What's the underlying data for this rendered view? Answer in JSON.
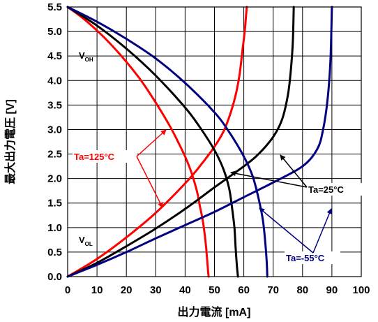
{
  "chart_data": {
    "type": "line",
    "title": "",
    "xlabel": "出力電流 [mA]",
    "ylabel": "最大出力電圧 [V]",
    "xlim": [
      0,
      100
    ],
    "ylim": [
      0,
      5.5
    ],
    "xticks": [
      "0",
      "10",
      "20",
      "30",
      "40",
      "50",
      "60",
      "70",
      "80",
      "90",
      "100"
    ],
    "yticks": [
      "0.0",
      "0.5",
      "1.0",
      "1.5",
      "2.0",
      "2.5",
      "3.0",
      "3.5",
      "4.0",
      "4.5",
      "5.0",
      "5.5"
    ],
    "grid": true,
    "colors": {
      "ta125": "#ff0000",
      "ta25": "#000000",
      "ta_minus55": "#000080"
    },
    "labels": {
      "voh_main": "V",
      "voh_sub": "OH",
      "vol_main": "V",
      "vol_sub": "OL",
      "ta125": "Ta=125°C",
      "ta25": "Ta=25°C",
      "ta_minus55": "Ta=-55°C"
    },
    "series": [
      {
        "group": "Ta=125°C",
        "kind": "VOH",
        "color": "#ff0000",
        "points": [
          [
            0,
            5.5
          ],
          [
            5,
            5.28
          ],
          [
            10,
            5.02
          ],
          [
            15,
            4.72
          ],
          [
            20,
            4.38
          ],
          [
            25,
            4.0
          ],
          [
            30,
            3.55
          ],
          [
            35,
            3.05
          ],
          [
            38,
            2.7
          ],
          [
            40,
            2.45
          ],
          [
            42,
            2.15
          ],
          [
            44,
            1.75
          ],
          [
            45,
            1.45
          ],
          [
            46,
            1.15
          ],
          [
            46.8,
            0.8
          ],
          [
            47.3,
            0.5
          ],
          [
            47.7,
            0.2
          ],
          [
            48,
            0
          ]
        ]
      },
      {
        "group": "Ta=125°C",
        "kind": "VOL",
        "color": "#ff0000",
        "points": [
          [
            0,
            0
          ],
          [
            10,
            0.36
          ],
          [
            20,
            0.8
          ],
          [
            30,
            1.3
          ],
          [
            40,
            1.9
          ],
          [
            45,
            2.25
          ],
          [
            50,
            2.65
          ],
          [
            53,
            2.95
          ],
          [
            55,
            3.25
          ],
          [
            57,
            3.65
          ],
          [
            58.5,
            4.1
          ],
          [
            59.5,
            4.6
          ],
          [
            60.3,
            5.0
          ],
          [
            61,
            5.5
          ]
        ]
      },
      {
        "group": "Ta=25°C",
        "kind": "VOH",
        "color": "#000000",
        "points": [
          [
            0,
            5.5
          ],
          [
            10,
            5.12
          ],
          [
            20,
            4.65
          ],
          [
            30,
            4.1
          ],
          [
            40,
            3.45
          ],
          [
            45,
            3.05
          ],
          [
            50,
            2.58
          ],
          [
            53,
            2.2
          ],
          [
            55,
            1.8
          ],
          [
            56,
            1.4
          ],
          [
            56.8,
            1.0
          ],
          [
            57.2,
            0.6
          ],
          [
            57.6,
            0.25
          ],
          [
            58,
            0
          ]
        ]
      },
      {
        "group": "Ta=25°C",
        "kind": "VOL",
        "color": "#000000",
        "points": [
          [
            0,
            0
          ],
          [
            10,
            0.28
          ],
          [
            20,
            0.62
          ],
          [
            30,
            0.98
          ],
          [
            40,
            1.38
          ],
          [
            50,
            1.82
          ],
          [
            60,
            2.25
          ],
          [
            65,
            2.5
          ],
          [
            70,
            2.85
          ],
          [
            73,
            3.2
          ],
          [
            75,
            3.7
          ],
          [
            76,
            4.2
          ],
          [
            76.7,
            4.8
          ],
          [
            77,
            5.5
          ]
        ]
      },
      {
        "group": "Ta=-55°C",
        "kind": "VOH",
        "color": "#000080",
        "points": [
          [
            0,
            5.5
          ],
          [
            10,
            5.2
          ],
          [
            20,
            4.85
          ],
          [
            30,
            4.45
          ],
          [
            40,
            3.95
          ],
          [
            50,
            3.35
          ],
          [
            55,
            2.95
          ],
          [
            60,
            2.45
          ],
          [
            63,
            2.05
          ],
          [
            65,
            1.6
          ],
          [
            66.5,
            1.15
          ],
          [
            67.3,
            0.7
          ],
          [
            67.8,
            0.3
          ],
          [
            68,
            0
          ]
        ]
      },
      {
        "group": "Ta=-55°C",
        "kind": "VOL",
        "color": "#000080",
        "points": [
          [
            0,
            0
          ],
          [
            10,
            0.24
          ],
          [
            20,
            0.5
          ],
          [
            30,
            0.78
          ],
          [
            40,
            1.05
          ],
          [
            50,
            1.32
          ],
          [
            60,
            1.62
          ],
          [
            70,
            1.92
          ],
          [
            80,
            2.25
          ],
          [
            85,
            2.6
          ],
          [
            87,
            3.0
          ],
          [
            88.5,
            3.6
          ],
          [
            89.5,
            4.4
          ],
          [
            90,
            5.5
          ]
        ]
      }
    ]
  }
}
